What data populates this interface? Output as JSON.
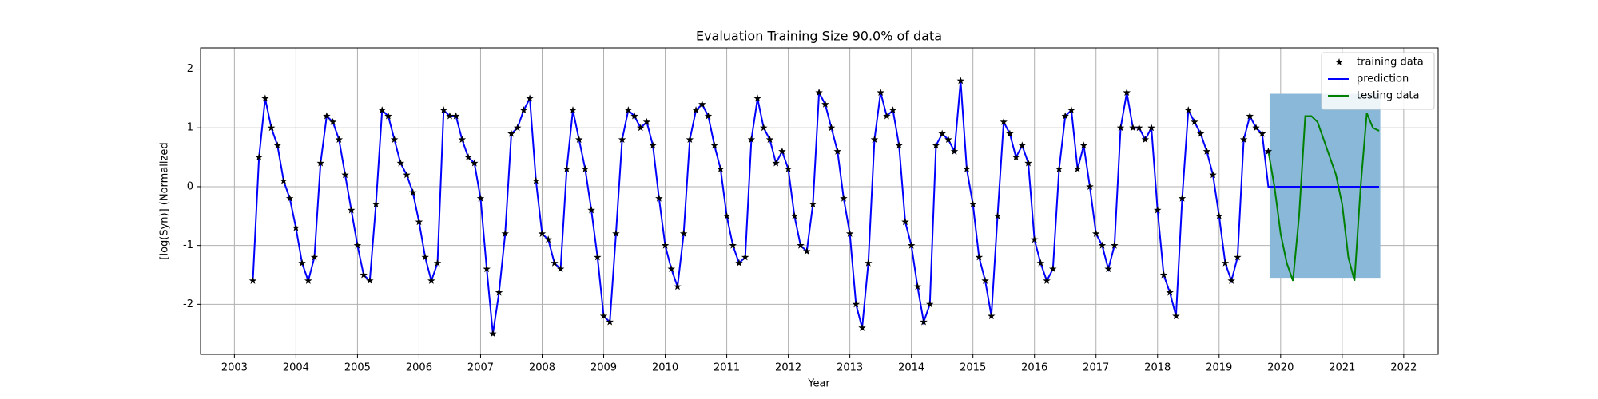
{
  "chart_data": {
    "type": "line",
    "title": "Evaluation Training Size 90.0% of data",
    "x_label": "Year",
    "y_label": "[log(Syn)] (Normalized",
    "xlim": [
      2002.45,
      2022.56
    ],
    "ylim": [
      -2.85,
      2.36
    ],
    "xticks": [
      2003,
      2004,
      2005,
      2006,
      2007,
      2008,
      2009,
      2010,
      2011,
      2012,
      2013,
      2014,
      2015,
      2016,
      2017,
      2018,
      2019,
      2020,
      2021,
      2022
    ],
    "yticks": [
      -2,
      -1,
      0,
      1,
      2
    ],
    "grid": true,
    "legend": "upper right",
    "x": [
      2003.3,
      2003.4,
      2003.5,
      2003.6,
      2003.7,
      2003.8,
      2003.9,
      2004.0,
      2004.1,
      2004.2,
      2004.3,
      2004.4,
      2004.5,
      2004.6,
      2004.7,
      2004.8,
      2004.9,
      2005.0,
      2005.1,
      2005.2,
      2005.3,
      2005.4,
      2005.5,
      2005.6,
      2005.7,
      2005.8,
      2005.9,
      2006.0,
      2006.1,
      2006.2,
      2006.3,
      2006.4,
      2006.5,
      2006.6,
      2006.7,
      2006.8,
      2006.9,
      2007.0,
      2007.1,
      2007.2,
      2007.3,
      2007.4,
      2007.5,
      2007.6,
      2007.7,
      2007.8,
      2007.9,
      2008.0,
      2008.1,
      2008.2,
      2008.3,
      2008.4,
      2008.5,
      2008.6,
      2008.7,
      2008.8,
      2008.9,
      2009.0,
      2009.1,
      2009.2,
      2009.3,
      2009.4,
      2009.5,
      2009.6,
      2009.7,
      2009.8,
      2009.9,
      2010.0,
      2010.1,
      2010.2,
      2010.3,
      2010.4,
      2010.5,
      2010.6,
      2010.7,
      2010.8,
      2010.9,
      2011.0,
      2011.1,
      2011.2,
      2011.3,
      2011.4,
      2011.5,
      2011.6,
      2011.7,
      2011.8,
      2011.9,
      2012.0,
      2012.1,
      2012.2,
      2012.3,
      2012.4,
      2012.5,
      2012.6,
      2012.7,
      2012.8,
      2012.9,
      2013.0,
      2013.1,
      2013.2,
      2013.3,
      2013.4,
      2013.5,
      2013.6,
      2013.7,
      2013.8,
      2013.9,
      2014.0,
      2014.1,
      2014.2,
      2014.3,
      2014.4,
      2014.5,
      2014.6,
      2014.7,
      2014.8,
      2014.9,
      2015.0,
      2015.1,
      2015.2,
      2015.3,
      2015.4,
      2015.5,
      2015.6,
      2015.7,
      2015.8,
      2015.9,
      2016.0,
      2016.1,
      2016.2,
      2016.3,
      2016.4,
      2016.5,
      2016.6,
      2016.7,
      2016.8,
      2016.9,
      2017.0,
      2017.1,
      2017.2,
      2017.3,
      2017.4,
      2017.5,
      2017.6,
      2017.7,
      2017.8,
      2017.9,
      2018.0,
      2018.1,
      2018.2,
      2018.3,
      2018.4,
      2018.5,
      2018.6,
      2018.7,
      2018.8,
      2018.9,
      2019.0,
      2019.1,
      2019.2,
      2019.3,
      2019.4,
      2019.5,
      2019.6,
      2019.7,
      2019.8,
      2019.9,
      2020.0,
      2020.1,
      2020.2,
      2020.3,
      2020.4,
      2020.5,
      2020.6,
      2020.7,
      2020.8,
      2020.9,
      2021.0,
      2021.1,
      2021.2,
      2021.3,
      2021.4,
      2021.5,
      2021.6
    ],
    "series": [
      {
        "name": "training data",
        "color": "#000000",
        "marker": "star",
        "values": [
          -1.6,
          0.5,
          1.5,
          1.0,
          0.7,
          0.1,
          -0.2,
          -0.7,
          -1.3,
          -1.6,
          -1.2,
          0.4,
          1.2,
          1.1,
          0.8,
          0.2,
          -0.4,
          -1.0,
          -1.5,
          -1.6,
          -0.3,
          1.3,
          1.2,
          0.8,
          0.4,
          0.2,
          -0.1,
          -0.6,
          -1.2,
          -1.6,
          -1.3,
          1.3,
          1.2,
          1.2,
          0.8,
          0.5,
          0.4,
          -0.2,
          -1.4,
          -2.5,
          -1.8,
          -0.8,
          0.9,
          1.0,
          1.3,
          1.5,
          0.1,
          -0.8,
          -0.9,
          -1.3,
          -1.4,
          0.3,
          1.3,
          0.8,
          0.3,
          -0.4,
          -1.2,
          -2.2,
          -2.3,
          -0.8,
          0.8,
          1.3,
          1.2,
          1.0,
          1.1,
          0.7,
          -0.2,
          -1.0,
          -1.4,
          -1.7,
          -0.8,
          0.8,
          1.3,
          1.4,
          1.2,
          0.7,
          0.3,
          -0.5,
          -1.0,
          -1.3,
          -1.2,
          0.8,
          1.5,
          1.0,
          0.8,
          0.4,
          0.6,
          0.3,
          -0.5,
          -1.0,
          -1.1,
          -0.3,
          1.6,
          1.4,
          1.0,
          0.6,
          -0.2,
          -0.8,
          -2.0,
          -2.4,
          -1.3,
          0.8,
          1.6,
          1.2,
          1.3,
          0.7,
          -0.6,
          -1.0,
          -1.7,
          -2.3,
          -2.0,
          0.7,
          0.9,
          0.8,
          0.6,
          1.8,
          0.3,
          -0.3,
          -1.2,
          -1.6,
          -2.2,
          -0.5,
          1.1,
          0.9,
          0.5,
          0.7,
          0.4,
          -0.9,
          -1.3,
          -1.6,
          -1.4,
          0.3,
          1.2,
          1.3,
          0.3,
          0.7,
          0.0,
          -0.8,
          -1.0,
          -1.4,
          -1.0,
          1.0,
          1.6,
          1.0,
          1.0,
          0.8,
          1.0,
          -0.4,
          -1.5,
          -1.8,
          -2.2,
          -0.2,
          1.3,
          1.1,
          0.9,
          0.6,
          0.2,
          -0.5,
          -1.3,
          -1.6,
          -1.2,
          0.8,
          1.2,
          1.0,
          0.9,
          0.6,
          null,
          null,
          null,
          null,
          null,
          null,
          null,
          null,
          null,
          null,
          null,
          null,
          null,
          null,
          null,
          null,
          null,
          null
        ]
      },
      {
        "name": "prediction",
        "color": "#0000ff",
        "values": [
          -1.6,
          0.5,
          1.5,
          1.0,
          0.7,
          0.1,
          -0.2,
          -0.7,
          -1.3,
          -1.6,
          -1.2,
          0.4,
          1.2,
          1.1,
          0.8,
          0.2,
          -0.4,
          -1.0,
          -1.5,
          -1.6,
          -0.3,
          1.3,
          1.2,
          0.8,
          0.4,
          0.2,
          -0.1,
          -0.6,
          -1.2,
          -1.6,
          -1.3,
          1.3,
          1.2,
          1.2,
          0.8,
          0.5,
          0.4,
          -0.2,
          -1.4,
          -2.5,
          -1.8,
          -0.8,
          0.9,
          1.0,
          1.3,
          1.5,
          0.1,
          -0.8,
          -0.9,
          -1.3,
          -1.4,
          0.3,
          1.3,
          0.8,
          0.3,
          -0.4,
          -1.2,
          -2.2,
          -2.3,
          -0.8,
          0.8,
          1.3,
          1.2,
          1.0,
          1.1,
          0.7,
          -0.2,
          -1.0,
          -1.4,
          -1.7,
          -0.8,
          0.8,
          1.3,
          1.4,
          1.2,
          0.7,
          0.3,
          -0.5,
          -1.0,
          -1.3,
          -1.2,
          0.8,
          1.5,
          1.0,
          0.8,
          0.4,
          0.6,
          0.3,
          -0.5,
          -1.0,
          -1.1,
          -0.3,
          1.6,
          1.4,
          1.0,
          0.6,
          -0.2,
          -0.8,
          -2.0,
          -2.4,
          -1.3,
          0.8,
          1.6,
          1.2,
          1.3,
          0.7,
          -0.6,
          -1.0,
          -1.7,
          -2.3,
          -2.0,
          0.7,
          0.9,
          0.8,
          0.6,
          1.8,
          0.3,
          -0.3,
          -1.2,
          -1.6,
          -2.2,
          -0.5,
          1.1,
          0.9,
          0.5,
          0.7,
          0.4,
          -0.9,
          -1.3,
          -1.6,
          -1.4,
          0.3,
          1.2,
          1.3,
          0.3,
          0.7,
          0.0,
          -0.8,
          -1.0,
          -1.4,
          -1.0,
          1.0,
          1.6,
          1.0,
          1.0,
          0.8,
          1.0,
          -0.4,
          -1.5,
          -1.8,
          -2.2,
          -0.2,
          1.3,
          1.1,
          0.9,
          0.6,
          0.2,
          -0.5,
          -1.3,
          -1.6,
          -1.2,
          0.8,
          1.2,
          1.0,
          0.9,
          0,
          0,
          0,
          0,
          0,
          0,
          0,
          0,
          0,
          0,
          0,
          0,
          0,
          0,
          0,
          0,
          0,
          0,
          0
        ]
      },
      {
        "name": "testing data",
        "color": "#008000",
        "values": [
          null,
          null,
          null,
          null,
          null,
          null,
          null,
          null,
          null,
          null,
          null,
          null,
          null,
          null,
          null,
          null,
          null,
          null,
          null,
          null,
          null,
          null,
          null,
          null,
          null,
          null,
          null,
          null,
          null,
          null,
          null,
          null,
          null,
          null,
          null,
          null,
          null,
          null,
          null,
          null,
          null,
          null,
          null,
          null,
          null,
          null,
          null,
          null,
          null,
          null,
          null,
          null,
          null,
          null,
          null,
          null,
          null,
          null,
          null,
          null,
          null,
          null,
          null,
          null,
          null,
          null,
          null,
          null,
          null,
          null,
          null,
          null,
          null,
          null,
          null,
          null,
          null,
          null,
          null,
          null,
          null,
          null,
          null,
          null,
          null,
          null,
          null,
          null,
          null,
          null,
          null,
          null,
          null,
          null,
          null,
          null,
          null,
          null,
          null,
          null,
          null,
          null,
          null,
          null,
          null,
          null,
          null,
          null,
          null,
          null,
          null,
          null,
          null,
          null,
          null,
          null,
          null,
          null,
          null,
          null,
          null,
          null,
          null,
          null,
          null,
          null,
          null,
          null,
          null,
          null,
          null,
          null,
          null,
          null,
          null,
          null,
          null,
          null,
          null,
          null,
          null,
          null,
          null,
          null,
          null,
          null,
          null,
          null,
          null,
          null,
          null,
          null,
          null,
          null,
          null,
          null,
          null,
          null,
          null,
          null,
          null,
          null,
          null,
          null,
          null,
          0.6,
          0.0,
          -0.8,
          -1.3,
          -1.6,
          -0.5,
          1.2,
          1.2,
          1.1,
          0.8,
          0.5,
          0.2,
          -0.3,
          -1.2,
          -1.6,
          0.0,
          1.25,
          1.0,
          0.95
        ]
      }
    ],
    "band": {
      "x": [
        2019.82,
        2021.62
      ],
      "lower": [
        -1.55,
        -1.55
      ],
      "upper": [
        1.58,
        1.58
      ],
      "color": "#8ab8d8"
    }
  }
}
